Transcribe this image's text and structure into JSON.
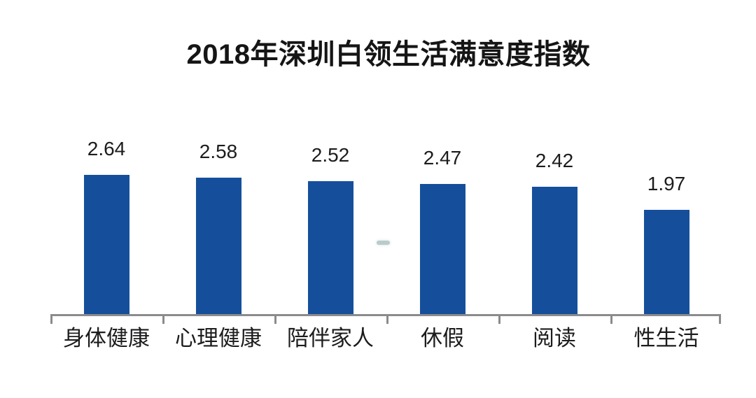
{
  "chart_data": {
    "type": "bar",
    "title": "2018年深圳白领生活满意度指数",
    "categories": [
      "身体健康",
      "心理健康",
      "陪伴家人",
      "休假",
      "阅读",
      "性生活"
    ],
    "values": [
      2.64,
      2.58,
      2.52,
      2.47,
      2.42,
      1.97
    ],
    "value_labels": [
      "2.64",
      "2.58",
      "2.52",
      "2.47",
      "2.42",
      "1.97"
    ],
    "xlabel": "",
    "ylabel": "",
    "ylim": [
      0,
      3
    ],
    "grid": false,
    "legend": false,
    "value_labels_position": "above-bars",
    "bar_color": "#154F9B",
    "axis_color": "#8B8B8B",
    "label_color": "#1C1C1E",
    "title_color": "#151515",
    "background_color": "#FFFFFF"
  },
  "artifact": {
    "smudge_color": "#7FA09E"
  }
}
